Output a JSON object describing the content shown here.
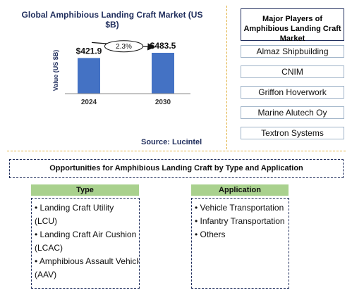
{
  "chart_data": {
    "type": "bar",
    "title": "Global Amphibious Landing Craft Market (US $B)",
    "ylabel": "Value (US $B)",
    "xlabel": "",
    "categories": [
      "2024",
      "2030"
    ],
    "values": [
      421.9,
      483.5
    ],
    "value_labels": [
      "$421.9",
      "$483.5"
    ],
    "cagr_label": "2.3%",
    "bar_color": "#4472c4",
    "source": "Source: Lucintel"
  },
  "players": {
    "title": "Major Players of Amphibious Landing Craft Market",
    "items": [
      "Almaz Shipbuilding",
      "CNIM",
      "Griffon Hoverwork",
      "Marine Alutech Oy",
      "Textron Systems"
    ]
  },
  "opportunities": {
    "title": "Opportunities for Amphibious Landing Craft by Type and Application",
    "type_header": "Type",
    "type_items": [
      "• Landing Craft Utility",
      "(LCU)",
      "• Landing Craft Air Cushion",
      "(LCAC)",
      "• Amphibious Assault Vehicle",
      "(AAV)"
    ],
    "application_header": "Application",
    "application_items": [
      "• Vehicle Transportation",
      "• Infantry Transportation",
      "• Others"
    ],
    "header_color": "#a9d18e"
  }
}
